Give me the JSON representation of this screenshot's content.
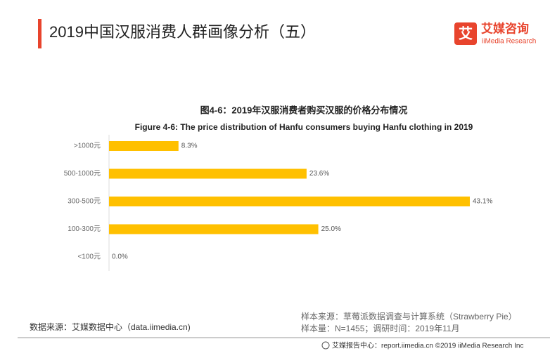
{
  "header": {
    "title": "2019中国汉服消费人群画像分析（五）",
    "logo_mark": "艾",
    "logo_cn": "艾媒咨询",
    "logo_en": "iiMedia Research"
  },
  "chart_data": {
    "type": "bar",
    "orientation": "horizontal",
    "title": "图4-6：2019年汉服消费者购买汉服的价格分布情况",
    "subtitle": "Figure 4-6: The price distribution of Hanfu consumers buying Hanfu clothing in 2019",
    "categories": [
      ">1000元",
      "500-1000元",
      "300-500元",
      "100-300元",
      "<100元"
    ],
    "values": [
      8.3,
      23.6,
      43.1,
      25.0,
      0.0
    ],
    "value_labels": [
      "8.3%",
      "23.6%",
      "43.1%",
      "25.0%",
      "0.0%"
    ],
    "color": "#ffc000"
  },
  "footer": {
    "source": "数据来源：艾媒数据中心（data.iimedia.cn)",
    "sample_source": "样本来源：草莓派数据调查与计算系统（Strawberry Pie）",
    "sample_info": "样本量：N=1455；调研时间：2019年11月",
    "copyright": "艾媒报告中心：report.iimedia.cn ©2019 iiMedia Research Inc"
  }
}
